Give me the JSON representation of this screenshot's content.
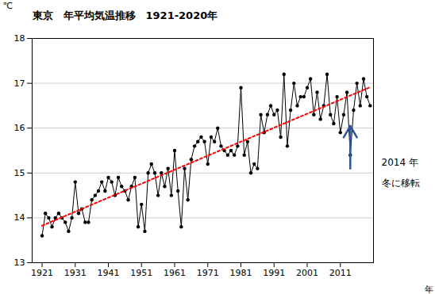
{
  "chart_data": {
    "type": "line",
    "title": "東京　年平均気温推移　1921-2020年",
    "x_label": "年",
    "y_label": "℃",
    "xlim": [
      1918,
      2021
    ],
    "xticks": [
      1921,
      1931,
      1941,
      1951,
      1961,
      1971,
      1981,
      1991,
      2001,
      2011
    ],
    "ylim": [
      13,
      18
    ],
    "yticks": [
      13,
      14,
      15,
      16,
      17,
      18
    ],
    "grid": true,
    "x": [
      1921,
      1922,
      1923,
      1924,
      1925,
      1926,
      1927,
      1928,
      1929,
      1930,
      1931,
      1932,
      1933,
      1934,
      1935,
      1936,
      1937,
      1938,
      1939,
      1940,
      1941,
      1942,
      1943,
      1944,
      1945,
      1946,
      1947,
      1948,
      1949,
      1950,
      1951,
      1952,
      1953,
      1954,
      1955,
      1956,
      1957,
      1958,
      1959,
      1960,
      1961,
      1962,
      1963,
      1964,
      1965,
      1966,
      1967,
      1968,
      1969,
      1970,
      1971,
      1972,
      1973,
      1974,
      1975,
      1976,
      1977,
      1978,
      1979,
      1980,
      1981,
      1982,
      1983,
      1984,
      1985,
      1986,
      1987,
      1988,
      1989,
      1990,
      1991,
      1992,
      1993,
      1994,
      1995,
      1996,
      1997,
      1998,
      1999,
      2000,
      2001,
      2002,
      2003,
      2004,
      2005,
      2006,
      2007,
      2008,
      2009,
      2010,
      2011,
      2012,
      2013,
      2014,
      2015,
      2016,
      2017,
      2018,
      2019,
      2020
    ],
    "series": [
      {
        "type": "line",
        "color": "#000000",
        "marker": "circle",
        "values": [
          13.6,
          14.1,
          14.0,
          13.8,
          14.0,
          14.1,
          14.0,
          13.9,
          13.7,
          14.0,
          14.8,
          14.1,
          14.2,
          13.9,
          13.9,
          14.4,
          14.5,
          14.6,
          14.8,
          14.6,
          14.9,
          14.8,
          14.5,
          14.9,
          14.7,
          14.6,
          14.4,
          14.7,
          14.9,
          13.8,
          14.3,
          13.7,
          15.0,
          15.2,
          15.0,
          14.5,
          15.0,
          14.7,
          15.1,
          14.5,
          15.5,
          14.6,
          13.8,
          15.1,
          14.4,
          15.3,
          15.6,
          15.7,
          15.8,
          15.7,
          15.2,
          15.8,
          15.7,
          16.0,
          15.6,
          15.5,
          15.4,
          15.5,
          15.4,
          15.6,
          16.9,
          15.4,
          15.7,
          15.0,
          15.2,
          15.1,
          16.3,
          15.9,
          16.3,
          16.5,
          16.3,
          16.4,
          15.8,
          17.2,
          15.6,
          16.4,
          17.0,
          16.5,
          16.7,
          16.7,
          16.9,
          17.1,
          16.3,
          16.8,
          16.2,
          16.5,
          17.2,
          16.3,
          16.1,
          16.7,
          15.9,
          16.3,
          16.8,
          15.4,
          16.4,
          17.0,
          16.5,
          17.1,
          16.7,
          16.5
        ]
      },
      {
        "type": "line",
        "color": "#ff0000",
        "line_style": "dotted",
        "x": [
          1921,
          2020
        ],
        "values": [
          13.826,
          16.914
        ]
      }
    ],
    "annotations": [
      {
        "text": "2014 年"
      },
      {
        "text": "冬に移転"
      },
      {
        "type": "arrow",
        "x": 2014,
        "y_from": 15.1,
        "y_to": 16.05,
        "color": "#2F5597"
      }
    ]
  }
}
